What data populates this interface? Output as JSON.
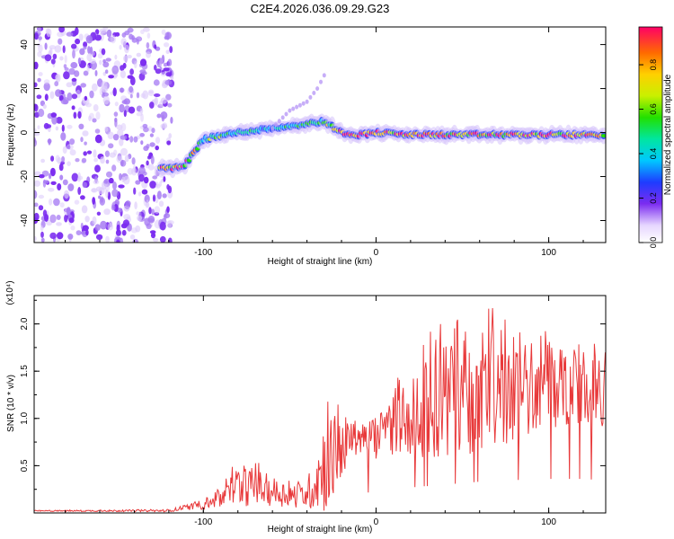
{
  "figure": {
    "title": "C2E4.2026.036.09.29.G23"
  },
  "colors": {
    "snr_line": "#e8393a",
    "axis": "#000000",
    "spectro_low": "#7b2cf0",
    "spectro_track": "#1e3cff"
  },
  "chart_data": [
    {
      "id": "spectrogram",
      "type": "heatmap",
      "title": "C2E4.2026.036.09.29.G23",
      "xlabel": "Height of straight line (km)",
      "ylabel": "Frequency (Hz)",
      "xlim": [
        -198,
        133
      ],
      "ylim": [
        -50,
        48
      ],
      "xticks": [
        -100,
        0,
        100
      ],
      "yticks": [
        -40,
        -20,
        0,
        20,
        40
      ],
      "colorbar": {
        "label": "Normalized spectral amplitude",
        "range": [
          0,
          0.97
        ],
        "ticks": [
          0.0,
          0.2,
          0.4,
          0.6,
          0.8
        ]
      },
      "noise_region_x": [
        -198,
        -118
      ],
      "track": {
        "x": [
          -125,
          -112,
          -100,
          -80,
          -60,
          -40,
          -30,
          -20,
          -10,
          0,
          20,
          60,
          100,
          133
        ],
        "freq": [
          -16,
          -16,
          -3,
          0,
          2,
          4,
          5,
          0,
          -1,
          0,
          -1,
          -1,
          -1,
          -1
        ],
        "amp": [
          0.85,
          0.9,
          0.6,
          0.45,
          0.4,
          0.5,
          0.55,
          0.9,
          0.95,
          0.95,
          0.9,
          0.9,
          0.9,
          0.85
        ]
      },
      "noise_seeds": 600,
      "upper_branch": {
        "x": [
          -60,
          -50,
          -40,
          -34,
          -30
        ],
        "freq": [
          2,
          10,
          14,
          20,
          26
        ]
      }
    },
    {
      "id": "snr",
      "type": "line",
      "xlabel": "Height of straight line (km)",
      "ylabel": "SNR (10 * v/v)",
      "multiplier": "(x10⁴)",
      "xlim": [
        -198,
        133
      ],
      "ylim": [
        0,
        2.3
      ],
      "xticks": [
        -100,
        0,
        100
      ],
      "yticks": [
        0.5,
        1.0,
        1.5,
        2.0
      ],
      "envelope": {
        "x": [
          -198,
          -120,
          -110,
          -100,
          -90,
          -80,
          -70,
          -60,
          -50,
          -40,
          -30,
          -20,
          -10,
          0,
          10,
          20,
          30,
          40,
          50,
          60,
          70,
          80,
          90,
          100,
          110,
          120,
          133
        ],
        "base": [
          0.02,
          0.02,
          0.05,
          0.07,
          0.12,
          0.22,
          0.22,
          0.18,
          0.15,
          0.15,
          0.35,
          0.6,
          0.75,
          0.7,
          0.85,
          0.9,
          0.95,
          1.0,
          1.05,
          1.1,
          1.1,
          1.15,
          1.2,
          1.2,
          1.2,
          1.2,
          1.15
        ],
        "peak": [
          0.03,
          0.04,
          0.1,
          0.15,
          0.3,
          0.6,
          0.55,
          0.45,
          0.35,
          0.4,
          1.2,
          1.2,
          1.0,
          1.1,
          1.4,
          1.6,
          1.9,
          2.1,
          2.1,
          2.2,
          2.2,
          2.1,
          2.1,
          2.25,
          1.9,
          1.9,
          1.7
        ]
      }
    }
  ]
}
